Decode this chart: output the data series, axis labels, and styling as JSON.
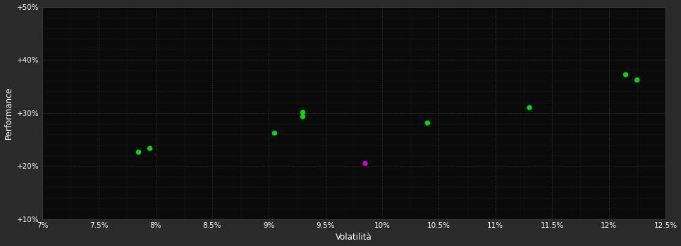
{
  "background_color": "#2a2a2a",
  "plot_bg_color": "#0a0a0a",
  "grid_color": "#3a3a3a",
  "text_color": "#ffffff",
  "xlabel": "Volatilità",
  "ylabel": "Performance",
  "xlim": [
    0.07,
    0.125
  ],
  "ylim": [
    0.1,
    0.5
  ],
  "xticks": [
    0.07,
    0.075,
    0.08,
    0.085,
    0.09,
    0.095,
    0.1,
    0.105,
    0.11,
    0.115,
    0.12,
    0.125
  ],
  "yticks": [
    0.1,
    0.2,
    0.3,
    0.4,
    0.5
  ],
  "ytick_labels": [
    "+10%",
    "+20%",
    "+30%",
    "+40%",
    "+50%"
  ],
  "xtick_labels": [
    "7%",
    "7.5%",
    "8%",
    "8.5%",
    "9%",
    "9.5%",
    "10%",
    "10.5%",
    "11%",
    "11.5%",
    "12%",
    "12.5%"
  ],
  "green_points": [
    [
      0.0795,
      0.233
    ],
    [
      0.0785,
      0.226
    ],
    [
      0.0905,
      0.262
    ],
    [
      0.093,
      0.301
    ],
    [
      0.093,
      0.293
    ],
    [
      0.104,
      0.281
    ],
    [
      0.113,
      0.31
    ],
    [
      0.1215,
      0.372
    ],
    [
      0.1225,
      0.362
    ]
  ],
  "magenta_points": [
    [
      0.0985,
      0.205
    ]
  ],
  "green_color": "#00dd00",
  "magenta_color": "#cc00cc",
  "marker_size": 28
}
